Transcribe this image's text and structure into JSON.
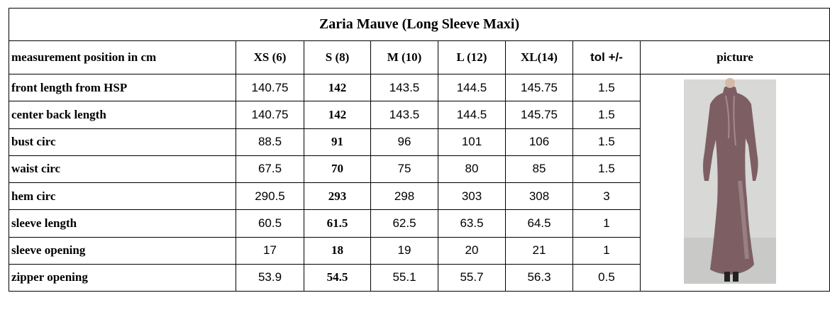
{
  "title": "Zaria Mauve (Long Sleeve Maxi)",
  "table": {
    "header": [
      "measurement position in cm",
      "XS (6)",
      "S (8)",
      "M (10)",
      "L (12)",
      "XL(14)",
      "tol +/-",
      "picture"
    ],
    "rows": [
      [
        "front length from HSP",
        140.75,
        142,
        143.5,
        144.5,
        145.75,
        1.5
      ],
      [
        "center back length",
        140.75,
        142,
        143.5,
        144.5,
        145.75,
        1.5
      ],
      [
        "bust circ",
        88.5,
        91,
        96,
        101,
        106,
        1.5
      ],
      [
        "waist circ",
        67.5,
        70,
        75,
        80,
        85,
        1.5
      ],
      [
        "hem circ",
        290.5,
        293,
        298,
        303,
        308,
        3
      ],
      [
        "sleeve length",
        60.5,
        61.5,
        62.5,
        63.5,
        64.5,
        1
      ],
      [
        "sleeve opening",
        17,
        18,
        19,
        20,
        21,
        1
      ],
      [
        "zipper opening",
        53.9,
        54.5,
        55.1,
        55.7,
        56.3,
        0.5
      ]
    ]
  }
}
